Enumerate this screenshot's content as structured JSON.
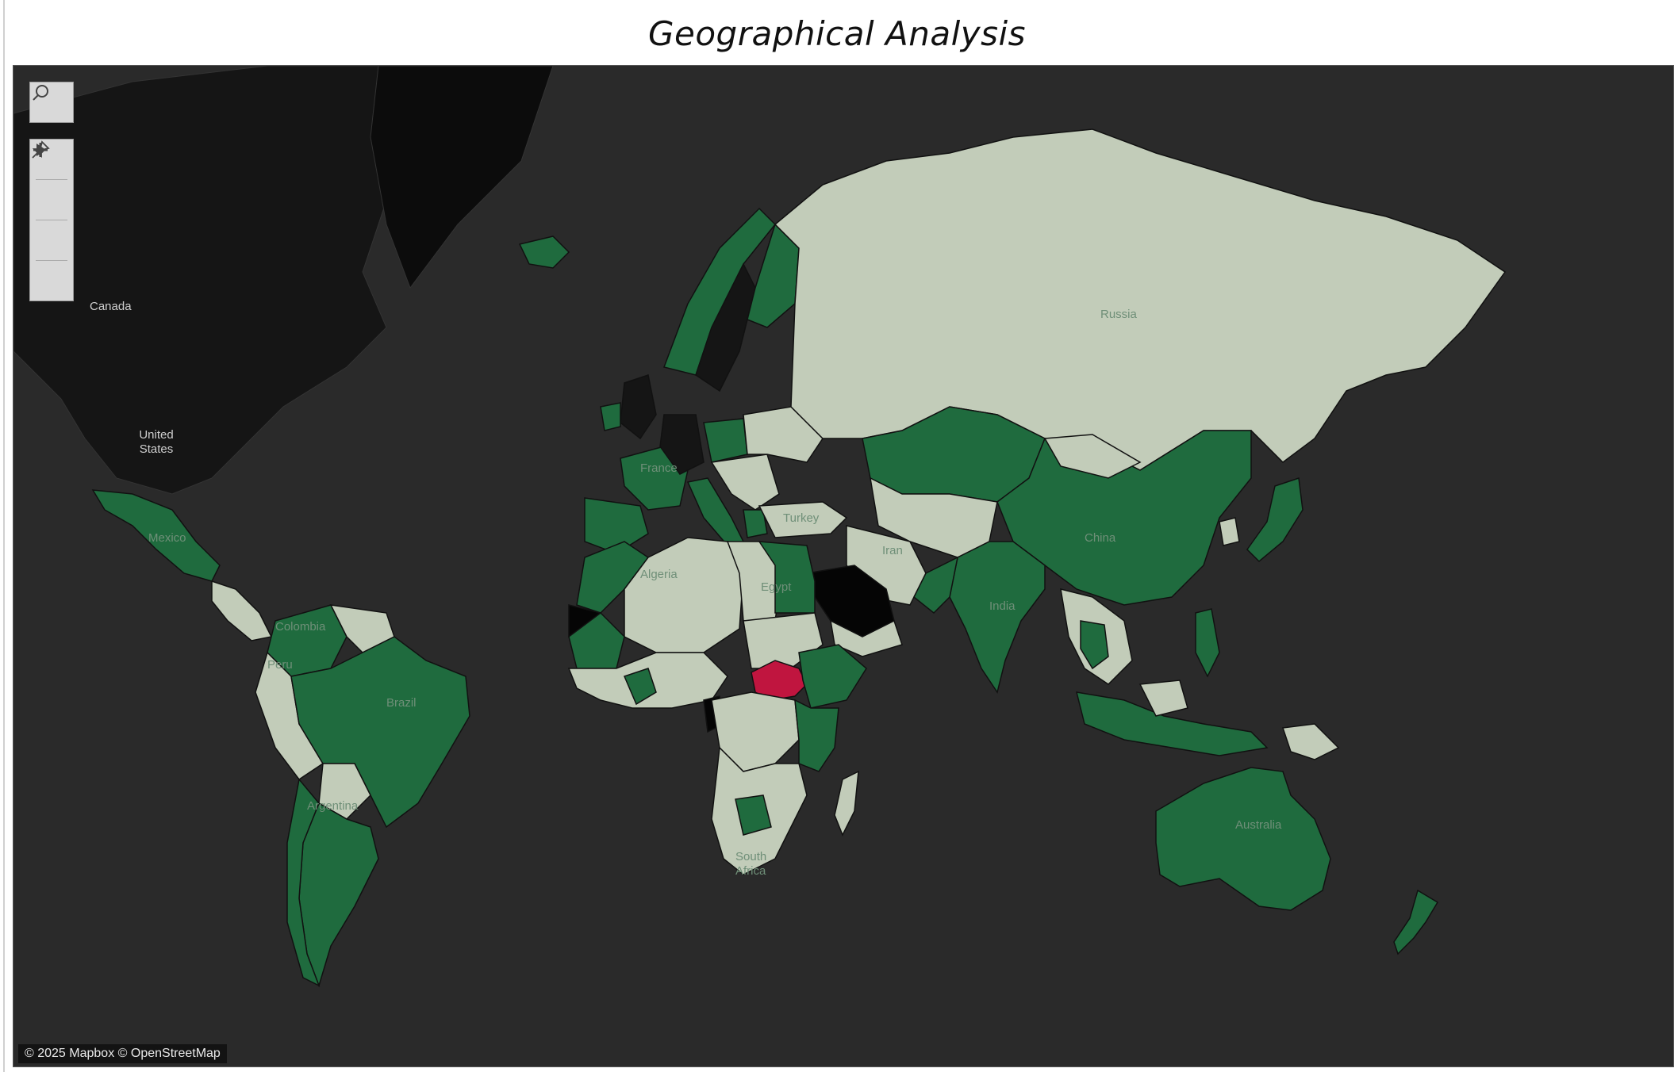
{
  "title": "Geographical Analysis",
  "colors": {
    "ocean": "#2a2a2a",
    "land_nodata": "#151515",
    "green": "#1f6b3e",
    "light": "#c2ccb9",
    "red": "#c0153f",
    "black": "#050505"
  },
  "controls": {
    "search": "search-icon",
    "zoom_in": "plus-icon",
    "zoom_out": "minus-icon",
    "pin": "pin-icon",
    "expand": "play-icon"
  },
  "labels": {
    "canada": "Canada",
    "us_1": "United",
    "us_2": "States",
    "russia": "Russia",
    "china": "China",
    "india": "India",
    "brazil": "Brazil",
    "australia": "Australia",
    "algeria": "Algeria",
    "egypt": "Egypt",
    "iran": "Iran",
    "turkey": "Turkey",
    "france": "France",
    "mexico": "Mexico",
    "argentina": "Argentina",
    "peru": "Peru",
    "colombia": "Colombia",
    "south_africa_1": "South",
    "south_africa_2": "Africa"
  },
  "attribution": "© 2025 Mapbox © OpenStreetMap"
}
